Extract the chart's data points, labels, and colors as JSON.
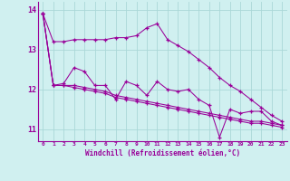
{
  "x": [
    0,
    1,
    2,
    3,
    4,
    5,
    6,
    7,
    8,
    9,
    10,
    11,
    12,
    13,
    14,
    15,
    16,
    17,
    18,
    19,
    20,
    21,
    22,
    23
  ],
  "line1": [
    13.9,
    13.2,
    13.2,
    13.25,
    13.25,
    13.25,
    13.25,
    13.3,
    13.3,
    13.35,
    13.55,
    13.65,
    13.25,
    13.1,
    12.95,
    12.75,
    12.55,
    12.3,
    12.1,
    11.95,
    11.75,
    11.55,
    11.35,
    11.2
  ],
  "line2": [
    13.9,
    12.1,
    12.15,
    12.55,
    12.45,
    12.1,
    12.1,
    11.75,
    12.2,
    12.1,
    11.85,
    12.2,
    12.0,
    11.95,
    12.0,
    11.75,
    11.6,
    10.8,
    11.5,
    11.4,
    11.45,
    11.45,
    11.2,
    11.1
  ],
  "line3": [
    13.9,
    12.1,
    12.1,
    12.1,
    12.05,
    12.0,
    11.95,
    11.85,
    11.8,
    11.75,
    11.7,
    11.65,
    11.6,
    11.55,
    11.5,
    11.45,
    11.4,
    11.35,
    11.3,
    11.25,
    11.2,
    11.2,
    11.15,
    11.1
  ],
  "line4": [
    13.9,
    12.1,
    12.1,
    12.05,
    12.0,
    11.95,
    11.9,
    11.8,
    11.75,
    11.7,
    11.65,
    11.6,
    11.55,
    11.5,
    11.45,
    11.4,
    11.35,
    11.3,
    11.25,
    11.2,
    11.15,
    11.15,
    11.1,
    11.05
  ],
  "line_color": "#990099",
  "background_color": "#d0f0f0",
  "grid_color": "#aad8d8",
  "xlabel": "Windchill (Refroidissement éolien,°C)",
  "ylim": [
    10.7,
    14.2
  ],
  "yticks": [
    11,
    12,
    13,
    14
  ],
  "xticks": [
    0,
    1,
    2,
    3,
    4,
    5,
    6,
    7,
    8,
    9,
    10,
    11,
    12,
    13,
    14,
    15,
    16,
    17,
    18,
    19,
    20,
    21,
    22,
    23
  ]
}
